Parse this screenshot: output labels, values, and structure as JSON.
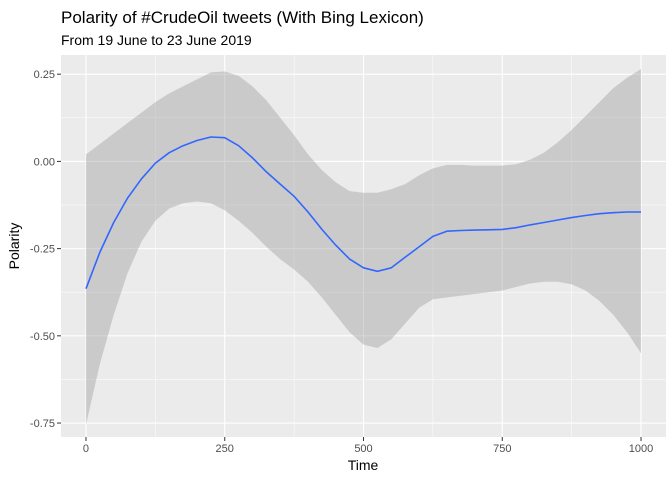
{
  "chart_data": {
    "type": "area",
    "title": "Polarity of #CrudeOil tweets (With Bing Lexicon)",
    "subtitle": "From 19 June to 23 June 2019",
    "xlabel": "Time",
    "ylabel": "Polarity",
    "xlim": [
      -45,
      1045
    ],
    "ylim": [
      -0.79,
      0.305
    ],
    "x_ticks": [
      0,
      250,
      500,
      750,
      1000
    ],
    "x_tick_labels": [
      "0",
      "250",
      "500",
      "750",
      "1000"
    ],
    "y_ticks": [
      -0.75,
      -0.5,
      -0.25,
      0.0,
      0.25
    ],
    "y_tick_labels": [
      "-0.75",
      "-0.50",
      "-0.25",
      "0.00",
      "0.25"
    ],
    "grid": true,
    "legend": "none",
    "series": [
      {
        "x": [
          0,
          25,
          50,
          75,
          100,
          125,
          150,
          175,
          200,
          225,
          250,
          275,
          300,
          325,
          350,
          375,
          400,
          425,
          450,
          475,
          500,
          525,
          550,
          575,
          600,
          625,
          650,
          675,
          700,
          725,
          750,
          775,
          800,
          825,
          850,
          875,
          900,
          925,
          950,
          975,
          1000
        ],
        "y": [
          -0.365,
          -0.26,
          -0.175,
          -0.105,
          -0.05,
          -0.005,
          0.025,
          0.045,
          0.06,
          0.07,
          0.068,
          0.045,
          0.01,
          -0.03,
          -0.065,
          -0.1,
          -0.145,
          -0.195,
          -0.24,
          -0.28,
          -0.305,
          -0.315,
          -0.305,
          -0.275,
          -0.245,
          -0.215,
          -0.2,
          -0.198,
          -0.197,
          -0.196,
          -0.195,
          -0.19,
          -0.182,
          -0.175,
          -0.168,
          -0.161,
          -0.155,
          -0.15,
          -0.147,
          -0.145,
          -0.145
        ],
        "lower": [
          -0.755,
          -0.58,
          -0.44,
          -0.32,
          -0.23,
          -0.17,
          -0.135,
          -0.12,
          -0.115,
          -0.12,
          -0.14,
          -0.17,
          -0.205,
          -0.245,
          -0.28,
          -0.31,
          -0.345,
          -0.39,
          -0.44,
          -0.49,
          -0.525,
          -0.535,
          -0.51,
          -0.465,
          -0.42,
          -0.395,
          -0.39,
          -0.385,
          -0.38,
          -0.375,
          -0.37,
          -0.36,
          -0.35,
          -0.345,
          -0.345,
          -0.352,
          -0.37,
          -0.4,
          -0.44,
          -0.49,
          -0.55
        ],
        "upper": [
          0.02,
          0.05,
          0.08,
          0.11,
          0.14,
          0.17,
          0.195,
          0.215,
          0.235,
          0.255,
          0.258,
          0.245,
          0.215,
          0.175,
          0.125,
          0.075,
          0.02,
          -0.025,
          -0.06,
          -0.085,
          -0.09,
          -0.09,
          -0.08,
          -0.065,
          -0.04,
          -0.02,
          -0.01,
          -0.01,
          -0.012,
          -0.012,
          -0.012,
          -0.008,
          0.005,
          0.025,
          0.055,
          0.09,
          0.13,
          0.17,
          0.21,
          0.24,
          0.265
        ]
      }
    ],
    "colors": {
      "line": "#3366FF",
      "ribbon": "#999999",
      "panel_bg": "#EBEBEB",
      "grid_major": "#FFFFFF"
    }
  }
}
